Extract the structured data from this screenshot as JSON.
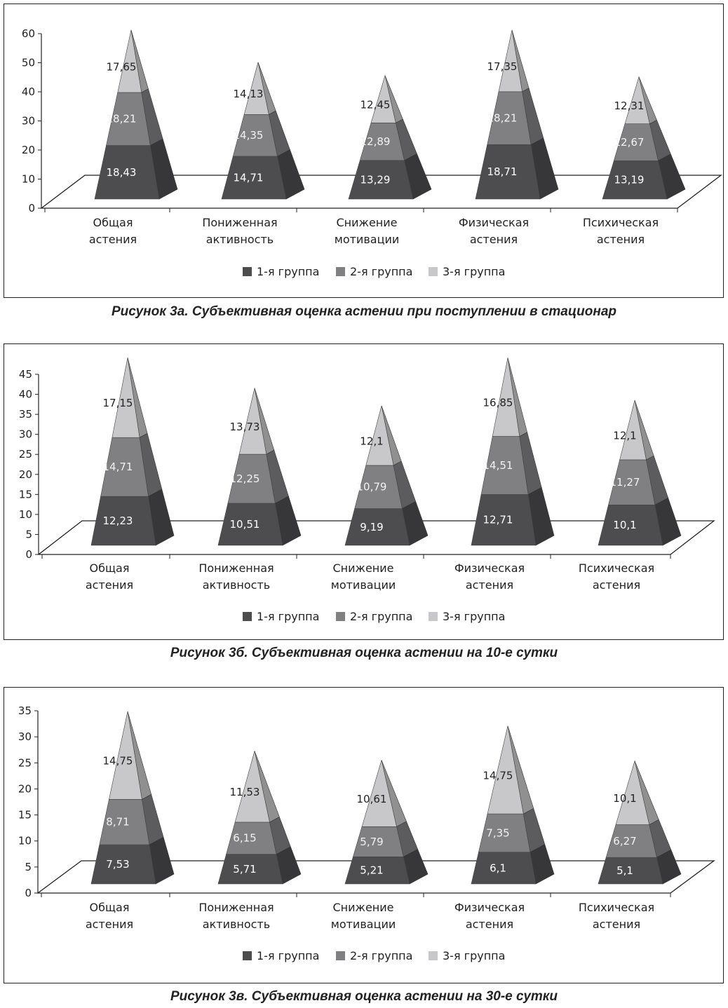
{
  "legend": {
    "labels": [
      "1-я группа",
      "2-я группа",
      "3-я группа"
    ],
    "colors": [
      "#4d4d4f",
      "#808082",
      "#c8c8ca"
    ]
  },
  "chart_data": [
    {
      "type": "bar",
      "style": "3d-stacked-pyramid",
      "categories": [
        "Общая астения",
        "Пониженная активность",
        "Снижение мотивации",
        "Физическая астения",
        "Психическая астения"
      ],
      "series": [
        {
          "name": "1-я группа",
          "values": [
            18.43,
            14.71,
            13.29,
            18.71,
            13.19
          ],
          "labels": [
            "18,43",
            "14,71",
            "13,29",
            "18,71",
            "13,19"
          ]
        },
        {
          "name": "2-я группа",
          "values": [
            18.21,
            14.35,
            12.89,
            18.21,
            12.67
          ],
          "labels": [
            "18,21",
            "14,35",
            "12,89",
            "18,21",
            "12,67"
          ]
        },
        {
          "name": "3-я группа",
          "values": [
            17.65,
            14.13,
            12.45,
            17.35,
            12.31
          ],
          "labels": [
            "17,65",
            "14,13",
            "12,45",
            "17,35",
            "12,31"
          ]
        }
      ],
      "ylim": [
        0,
        60
      ],
      "yticks": [
        "0",
        "10",
        "20",
        "30",
        "40",
        "50",
        "60"
      ],
      "caption": "Рисунок 3а. Субъективная оценка астении при поступлении в стационар"
    },
    {
      "type": "bar",
      "style": "3d-stacked-pyramid",
      "categories": [
        "Общая астения",
        "Пониженная активность",
        "Снижение мотивации",
        "Физическая астения",
        "Психическая астения"
      ],
      "series": [
        {
          "name": "1-я группа",
          "values": [
            12.23,
            10.51,
            9.19,
            12.71,
            10.1
          ],
          "labels": [
            "12,23",
            "10,51",
            "9,19",
            "12,71",
            "10,1"
          ]
        },
        {
          "name": "2-я группа",
          "values": [
            14.71,
            12.25,
            10.79,
            14.51,
            11.27
          ],
          "labels": [
            "14,71",
            "12,25",
            "10,79",
            "14,51",
            "11,27"
          ]
        },
        {
          "name": "3-я группа",
          "values": [
            17.15,
            13.73,
            12.1,
            16.85,
            12.1
          ],
          "labels": [
            "17,15",
            "13,73",
            "12,1",
            "16,85",
            "12,1"
          ]
        }
      ],
      "ylim": [
        0,
        45
      ],
      "yticks": [
        "0",
        "5",
        "10",
        "15",
        "20",
        "25",
        "30",
        "35",
        "40",
        "45"
      ],
      "caption": "Рисунок 3б. Субъективная оценка астении на 10-е сутки"
    },
    {
      "type": "bar",
      "style": "3d-stacked-pyramid",
      "categories": [
        "Общая астения",
        "Пониженная активность",
        "Снижение мотивации",
        "Физическая астения",
        "Психическая астения"
      ],
      "series": [
        {
          "name": "1-я группа",
          "values": [
            7.53,
            5.71,
            5.21,
            6.1,
            5.1
          ],
          "labels": [
            "7,53",
            "5,71",
            "5,21",
            "6,1",
            "5,1"
          ]
        },
        {
          "name": "2-я группа",
          "values": [
            8.71,
            6.15,
            5.79,
            7.35,
            6.27
          ],
          "labels": [
            "8,71",
            "6,15",
            "5,79",
            "7,35",
            "6,27"
          ]
        },
        {
          "name": "3-я группа",
          "values": [
            14.75,
            11.53,
            10.61,
            14.75,
            10.1
          ],
          "labels": [
            "14,75",
            "11,53",
            "10,61",
            "14,75",
            "10,1"
          ]
        }
      ],
      "ylim": [
        0,
        35
      ],
      "yticks": [
        "0",
        "5",
        "10",
        "15",
        "20",
        "25",
        "30",
        "35"
      ],
      "caption": "Рисунок 3в. Субъективная оценка астении на 30-е сутки"
    }
  ]
}
